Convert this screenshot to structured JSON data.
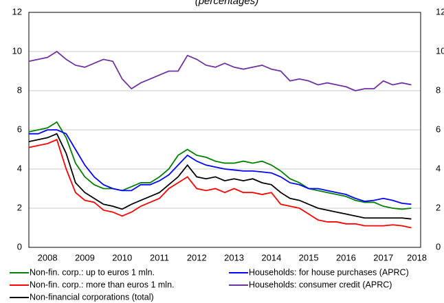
{
  "chart_data": {
    "type": "line",
    "title": "(percentages)",
    "x": [
      2008,
      2008.25,
      2008.5,
      2008.75,
      2009,
      2009.25,
      2009.5,
      2009.75,
      2010,
      2010.25,
      2010.5,
      2010.75,
      2011,
      2011.25,
      2011.5,
      2011.75,
      2012,
      2012.25,
      2012.5,
      2012.75,
      2013,
      2013.25,
      2013.5,
      2013.75,
      2014,
      2014.25,
      2014.5,
      2014.75,
      2015,
      2015.25,
      2015.5,
      2015.75,
      2016,
      2016.25,
      2016.5,
      2016.75,
      2017,
      2017.25,
      2017.5,
      2017.75,
      2018,
      2018.25
    ],
    "series": [
      {
        "name": "Non-fin. corp.: up to euros 1 mln.",
        "color": "#008000",
        "values": [
          5.9,
          6.0,
          6.1,
          6.4,
          5.6,
          4.3,
          3.6,
          3.2,
          3.0,
          3.0,
          2.9,
          3.1,
          3.3,
          3.3,
          3.6,
          4.0,
          4.7,
          5.0,
          4.7,
          4.6,
          4.4,
          4.3,
          4.3,
          4.4,
          4.3,
          4.4,
          4.2,
          3.9,
          3.5,
          3.3,
          3.0,
          2.9,
          2.8,
          2.7,
          2.6,
          2.4,
          2.3,
          2.3,
          2.1,
          2.0,
          1.95,
          2.0
        ]
      },
      {
        "name": "Households: for house purchases (APRC)",
        "color": "#0000ff",
        "values": [
          5.8,
          5.8,
          6.0,
          6.0,
          5.8,
          5.0,
          4.2,
          3.6,
          3.2,
          3.0,
          2.9,
          2.9,
          3.2,
          3.2,
          3.4,
          3.7,
          4.2,
          4.7,
          4.4,
          4.2,
          4.1,
          4.0,
          3.95,
          3.9,
          3.9,
          3.85,
          3.8,
          3.6,
          3.3,
          3.2,
          3.0,
          3.0,
          2.9,
          2.8,
          2.7,
          2.5,
          2.35,
          2.4,
          2.5,
          2.4,
          2.25,
          2.2
        ]
      },
      {
        "name": "Non-fin. corp.: more than euros 1 mln.",
        "color": "#ff0000",
        "values": [
          5.1,
          5.2,
          5.3,
          5.5,
          4.0,
          2.8,
          2.4,
          2.3,
          1.9,
          1.8,
          1.6,
          1.8,
          2.1,
          2.3,
          2.5,
          3.0,
          3.3,
          3.6,
          3.0,
          2.9,
          3.0,
          2.8,
          3.0,
          2.8,
          2.8,
          2.7,
          2.8,
          2.2,
          2.1,
          2.0,
          1.7,
          1.4,
          1.3,
          1.3,
          1.2,
          1.2,
          1.1,
          1.1,
          1.1,
          1.15,
          1.1,
          1.0
        ]
      },
      {
        "name": "Households: consumer credit (APRC)",
        "color": "#7030a0",
        "values": [
          9.5,
          9.6,
          9.7,
          10.0,
          9.6,
          9.3,
          9.2,
          9.4,
          9.6,
          9.5,
          8.6,
          8.1,
          8.4,
          8.6,
          8.8,
          9.0,
          9.0,
          9.8,
          9.6,
          9.3,
          9.2,
          9.4,
          9.2,
          9.1,
          9.2,
          9.3,
          9.1,
          9.0,
          8.5,
          8.6,
          8.5,
          8.3,
          8.4,
          8.3,
          8.2,
          8.0,
          8.1,
          8.1,
          8.5,
          8.3,
          8.4,
          8.3
        ]
      },
      {
        "name": "Non-financial corporations (total)",
        "color": "#000000",
        "values": [
          5.4,
          5.5,
          5.6,
          5.8,
          4.8,
          3.3,
          2.8,
          2.5,
          2.2,
          2.1,
          1.95,
          2.2,
          2.4,
          2.6,
          2.8,
          3.2,
          3.6,
          4.2,
          3.6,
          3.5,
          3.6,
          3.4,
          3.5,
          3.4,
          3.5,
          3.3,
          3.2,
          2.8,
          2.5,
          2.4,
          2.2,
          2.0,
          1.9,
          1.8,
          1.7,
          1.6,
          1.5,
          1.5,
          1.5,
          1.5,
          1.5,
          1.45
        ]
      }
    ],
    "xlim": [
      2008,
      2018.5
    ],
    "xticks": [
      {
        "value": 2008.5,
        "label": "2008"
      },
      {
        "value": 2009.5,
        "label": "2009"
      },
      {
        "value": 2010.5,
        "label": "2010"
      },
      {
        "value": 2011.5,
        "label": "2011"
      },
      {
        "value": 2012.5,
        "label": "2012"
      },
      {
        "value": 2013.5,
        "label": "2013"
      },
      {
        "value": 2014.5,
        "label": "2014"
      },
      {
        "value": 2015.5,
        "label": "2015"
      },
      {
        "value": 2016.5,
        "label": "2016"
      },
      {
        "value": 2017.5,
        "label": "2017"
      },
      {
        "value": 2018.4,
        "label": "2018"
      }
    ],
    "ylim": [
      0,
      12
    ],
    "yticks": [
      0,
      2,
      4,
      6,
      8,
      10,
      12
    ],
    "y2lim": [
      0,
      12
    ],
    "y2ticks": [
      0,
      2,
      4,
      6,
      8,
      10,
      12
    ],
    "grid": true
  }
}
